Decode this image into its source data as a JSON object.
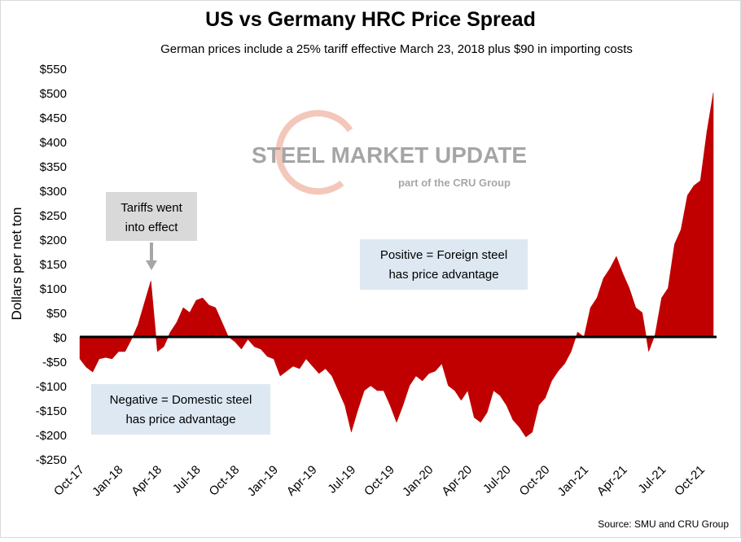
{
  "chart_data": {
    "type": "area",
    "title": "US vs Germany HRC Price Spread",
    "subtitle": "German prices include a 25% tariff effective March 23, 2018 plus $90 in importing costs",
    "y_label": "Dollars per net ton",
    "source": "Source: SMU and CRU Group",
    "watermark": [
      "STEEL MARKET UPDATE",
      "part of the CRU Group"
    ],
    "annotations": [
      {
        "lines": [
          "Tariffs went",
          "into effect"
        ]
      },
      {
        "lines": [
          "Positive = Foreign steel",
          "has price advantage"
        ]
      },
      {
        "lines": [
          "Negative = Domestic steel",
          "has price advantage"
        ]
      }
    ],
    "color": "#c00000",
    "categories": [
      "Oct-17",
      null,
      null,
      null,
      null,
      null,
      "Jan-18",
      null,
      null,
      null,
      null,
      null,
      "Apr-18",
      null,
      null,
      null,
      null,
      null,
      "Jul-18",
      null,
      null,
      null,
      null,
      null,
      "Oct-18",
      null,
      null,
      null,
      null,
      null,
      "Jan-19",
      null,
      null,
      null,
      null,
      null,
      "Apr-19",
      null,
      null,
      null,
      null,
      null,
      "Jul-19",
      null,
      null,
      null,
      null,
      null,
      "Oct-19",
      null,
      null,
      null,
      null,
      null,
      "Jan-20",
      null,
      null,
      null,
      null,
      null,
      "Apr-20",
      null,
      null,
      null,
      null,
      null,
      "Jul-20",
      null,
      null,
      null,
      null,
      null,
      "Oct-20",
      null,
      null,
      null,
      null,
      null,
      "Jan-21",
      null,
      null,
      null,
      null,
      null,
      "Apr-21",
      null,
      null,
      null,
      null,
      null,
      "Jul-21",
      null,
      null,
      null,
      null,
      null,
      "Oct-21",
      null,
      null
    ],
    "values": [
      -45,
      -62,
      -72,
      -45,
      -42,
      -45,
      -30,
      -30,
      -5,
      25,
      70,
      115,
      -30,
      -20,
      10,
      30,
      60,
      50,
      75,
      80,
      65,
      60,
      30,
      0,
      -10,
      -25,
      -5,
      -20,
      -25,
      -40,
      -45,
      -80,
      -70,
      -60,
      -65,
      -45,
      -60,
      -75,
      -65,
      -80,
      -110,
      -140,
      -195,
      -150,
      -110,
      -100,
      -110,
      -110,
      -140,
      -175,
      -140,
      -100,
      -80,
      -90,
      -75,
      -70,
      -55,
      -100,
      -110,
      -130,
      -110,
      -165,
      -175,
      -155,
      -110,
      -120,
      -140,
      -170,
      -185,
      -205,
      -195,
      -140,
      -125,
      -90,
      -70,
      -55,
      -30,
      10,
      0,
      60,
      80,
      120,
      140,
      165,
      130,
      100,
      60,
      50,
      -30,
      5,
      80,
      100,
      190,
      220,
      290,
      310,
      320,
      420,
      500
    ],
    "ylim": [
      -250,
      550
    ],
    "yticks": [
      {
        "value": -250,
        "label": "-$250"
      },
      {
        "value": -200,
        "label": "-$200"
      },
      {
        "value": -150,
        "label": "-$150"
      },
      {
        "value": -100,
        "label": "-$100"
      },
      {
        "value": -50,
        "label": "-$50"
      },
      {
        "value": 0,
        "label": "$0"
      },
      {
        "value": 50,
        "label": "$50"
      },
      {
        "value": 100,
        "label": "$100"
      },
      {
        "value": 150,
        "label": "$150"
      },
      {
        "value": 200,
        "label": "$200"
      },
      {
        "value": 250,
        "label": "$250"
      },
      {
        "value": 300,
        "label": "$300"
      },
      {
        "value": 350,
        "label": "$350"
      },
      {
        "value": 400,
        "label": "$400"
      },
      {
        "value": 450,
        "label": "$450"
      },
      {
        "value": 500,
        "label": "$500"
      },
      {
        "value": 550,
        "label": "$550"
      }
    ]
  }
}
